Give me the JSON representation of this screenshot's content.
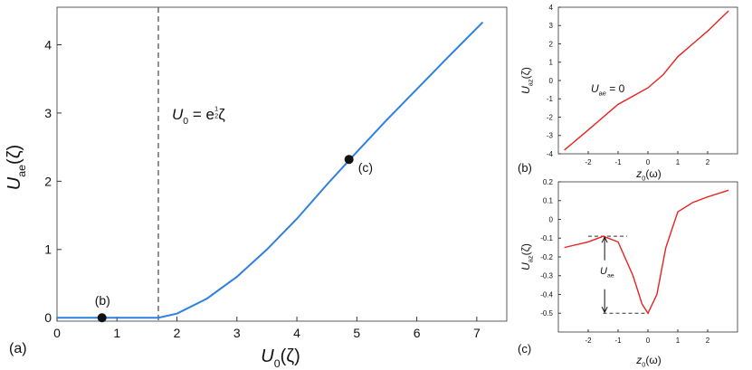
{
  "chart_data": [
    {
      "type": "line",
      "panel_label": "(a)",
      "xlabel": {
        "main": "U",
        "sub": "0",
        "rest": "(ζ)"
      },
      "ylabel": {
        "main": "U",
        "sub": "ae",
        "rest": "(ζ)"
      },
      "xlim": [
        0,
        7.5
      ],
      "ylim": [
        -0.05,
        4.55
      ],
      "xticks": [
        0,
        1,
        2,
        3,
        4,
        5,
        6,
        7
      ],
      "yticks": [
        0,
        1,
        2,
        3,
        4
      ],
      "series": [
        {
          "color": "#2f80e0",
          "x": [
            0,
            1.69,
            2,
            2.5,
            3,
            3.5,
            4,
            4.5,
            5,
            5.5,
            6,
            6.5,
            7.1
          ],
          "values": [
            0,
            0,
            0.06,
            0.28,
            0.6,
            1.0,
            1.45,
            1.95,
            2.43,
            2.9,
            3.35,
            3.8,
            4.33
          ]
        }
      ],
      "vline_x": 1.69,
      "points": [
        {
          "label": "(b)",
          "x": 0.75,
          "y": 0
        },
        {
          "label": "(c)",
          "x": 4.87,
          "y": 2.32
        }
      ],
      "annotation": {
        "main": "U",
        "sub": "0",
        "mid": " = e",
        "sup_num": 1,
        "sup_den": 2,
        "rest": "ζ"
      }
    },
    {
      "type": "line",
      "panel_label": "(b)",
      "xlabel": {
        "main": "z",
        "rest": "(ω",
        "sub": "0",
        "end": ")"
      },
      "ylabel": {
        "main": "U",
        "sub": "az",
        "rest": "(ζ)"
      },
      "xlim": [
        -3,
        3
      ],
      "ylim": [
        -4,
        4
      ],
      "xticks": [
        -2,
        -1,
        0,
        1,
        2
      ],
      "yticks": [
        -4,
        -3,
        -2,
        -1,
        0,
        1,
        2,
        3,
        4
      ],
      "series": [
        {
          "color": "#e8211e",
          "x": [
            -2.8,
            -2,
            -1.5,
            -1,
            -0.5,
            0,
            0.5,
            1,
            1.5,
            2,
            2.7
          ],
          "values": [
            -3.8,
            -2.7,
            -2.0,
            -1.3,
            -0.85,
            -0.4,
            0.3,
            1.3,
            2.0,
            2.7,
            3.8
          ]
        }
      ],
      "annotation": {
        "main": "U",
        "sub": "ae",
        "rest": " = 0"
      }
    },
    {
      "type": "line",
      "panel_label": "(c)",
      "xlabel": {
        "main": "z",
        "rest": "(ω",
        "sub": "0",
        "end": ")"
      },
      "ylabel": {
        "main": "U",
        "sub": "az",
        "rest": "(ζ)"
      },
      "xlim": [
        -3,
        3
      ],
      "ylim": [
        -0.6,
        0.2
      ],
      "xticks": [
        -2,
        -1,
        0,
        1,
        2
      ],
      "yticks": [
        0.2,
        0.1,
        0,
        -0.1,
        -0.2,
        -0.3,
        -0.4,
        -0.5
      ],
      "series": [
        {
          "color": "#e8211e",
          "x": [
            -2.8,
            -2,
            -1.5,
            -1,
            -0.5,
            -0.2,
            0,
            0.3,
            0.6,
            1,
            1.5,
            2,
            2.7
          ],
          "values": [
            -0.15,
            -0.12,
            -0.09,
            -0.12,
            -0.3,
            -0.45,
            -0.5,
            -0.4,
            -0.15,
            0.04,
            0.09,
            0.12,
            0.155
          ]
        }
      ],
      "hlines": [
        {
          "y": -0.09,
          "x": [
            -2,
            -0.7
          ]
        },
        {
          "y": -0.5,
          "x": [
            -1.5,
            0
          ]
        }
      ],
      "annotation": {
        "main": "U",
        "sub": "ae"
      }
    }
  ]
}
